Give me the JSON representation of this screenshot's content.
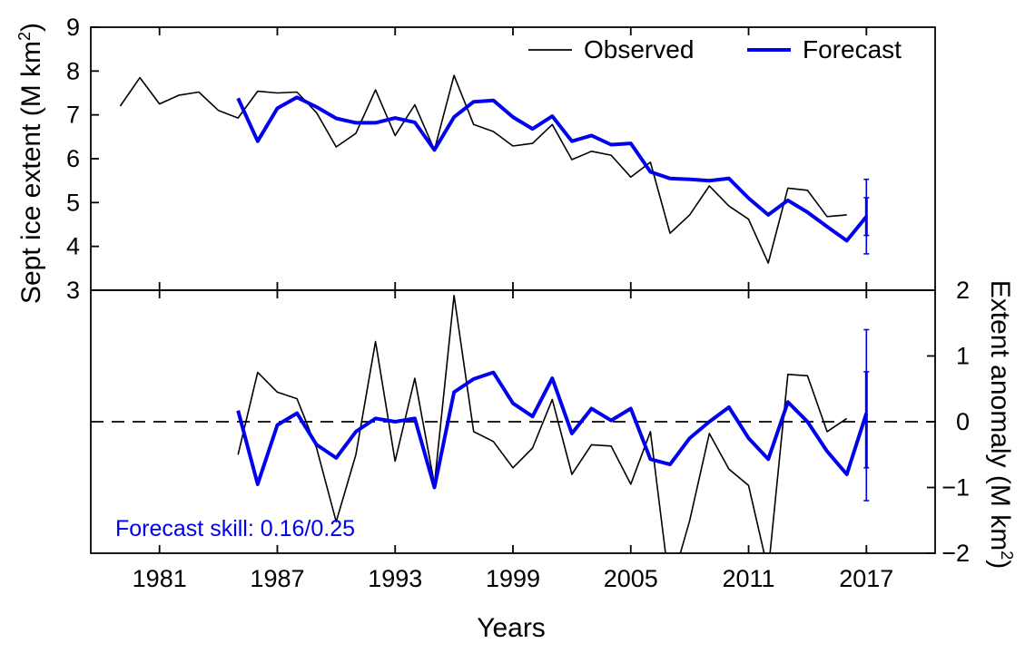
{
  "colors": {
    "observed": "#000000",
    "forecast": "#0000ee",
    "zero_line": "#000000"
  },
  "legend": {
    "observed_label": "Observed",
    "forecast_label": "Forecast",
    "position": "top-right"
  },
  "annotation": {
    "skill_text": "Forecast skill: 0.16/0.25"
  },
  "chart_data": [
    {
      "type": "line",
      "panel": "top",
      "ylabel": "Sept ice extent (M km²)",
      "ylabel_parts": {
        "main": "Sept ice extent (M km",
        "sup": "2",
        "end": ")"
      },
      "ylim": [
        3,
        9
      ],
      "yticks": [
        3,
        4,
        5,
        6,
        7,
        8,
        9
      ],
      "xlim": [
        1977.5,
        2020.5
      ],
      "grid": false,
      "series": [
        {
          "name": "Observed",
          "x": [
            1979,
            1980,
            1981,
            1982,
            1983,
            1984,
            1985,
            1986,
            1987,
            1988,
            1989,
            1990,
            1991,
            1992,
            1993,
            1994,
            1995,
            1996,
            1997,
            1998,
            1999,
            2000,
            2001,
            2002,
            2003,
            2004,
            2005,
            2006,
            2007,
            2008,
            2009,
            2010,
            2011,
            2012,
            2013,
            2014,
            2015,
            2016
          ],
          "values": [
            7.2,
            7.85,
            7.25,
            7.45,
            7.52,
            7.1,
            6.93,
            7.54,
            7.5,
            7.52,
            7.05,
            6.27,
            6.58,
            7.57,
            6.53,
            7.23,
            6.2,
            7.9,
            6.78,
            6.62,
            6.29,
            6.35,
            6.78,
            5.98,
            6.17,
            6.08,
            5.58,
            5.92,
            4.3,
            4.72,
            5.38,
            4.92,
            4.62,
            3.62,
            5.33,
            5.28,
            4.68,
            4.72
          ]
        },
        {
          "name": "Forecast",
          "x": [
            1985,
            1986,
            1987,
            1988,
            1989,
            1990,
            1991,
            1992,
            1993,
            1994,
            1995,
            1996,
            1997,
            1998,
            1999,
            2000,
            2001,
            2002,
            2003,
            2004,
            2005,
            2006,
            2007,
            2008,
            2009,
            2010,
            2011,
            2012,
            2013,
            2014,
            2015,
            2016,
            2017
          ],
          "values": [
            7.38,
            6.4,
            7.15,
            7.4,
            7.18,
            6.92,
            6.82,
            6.82,
            6.93,
            6.83,
            6.2,
            6.95,
            7.3,
            7.33,
            6.95,
            6.68,
            6.97,
            6.4,
            6.53,
            6.32,
            6.35,
            5.7,
            5.55,
            5.53,
            5.5,
            5.55,
            5.1,
            4.72,
            5.05,
            4.78,
            4.45,
            4.13,
            4.68
          ]
        }
      ],
      "errorbar": {
        "x": 2017,
        "center": 4.68,
        "inner": [
          4.25,
          5.11
        ],
        "outer": [
          3.83,
          5.53
        ]
      }
    },
    {
      "type": "line",
      "panel": "bottom",
      "xlabel": "Years",
      "ylabel": "Extent anomaly (M km²)",
      "ylabel_parts": {
        "main": "Extent anomaly (M km",
        "sup": "2",
        "end": ")"
      },
      "ylim": [
        -2,
        2
      ],
      "yticks": [
        -2,
        -1,
        0,
        1,
        2
      ],
      "ytick_labels": [
        "−2",
        "−1",
        "0",
        "1",
        "2"
      ],
      "xlim": [
        1977.5,
        2020.5
      ],
      "xticks": [
        1981,
        1987,
        1993,
        1999,
        2005,
        2011,
        2017
      ],
      "xtick_labels": [
        "1981",
        "1987",
        "1993",
        "1999",
        "2005",
        "2011",
        "2017"
      ],
      "zero_line": "dashed",
      "grid": false,
      "series": [
        {
          "name": "Observed",
          "x": [
            1985,
            1986,
            1987,
            1988,
            1989,
            1990,
            1991,
            1992,
            1993,
            1994,
            1995,
            1996,
            1997,
            1998,
            1999,
            2000,
            2001,
            2002,
            2003,
            2004,
            2005,
            2006,
            2007,
            2008,
            2009,
            2010,
            2011,
            2012,
            2013,
            2014,
            2015,
            2016
          ],
          "values": [
            -0.5,
            0.75,
            0.45,
            0.35,
            -0.4,
            -1.52,
            -0.5,
            1.22,
            -0.6,
            0.66,
            -0.95,
            1.92,
            -0.15,
            -0.3,
            -0.7,
            -0.4,
            0.34,
            -0.8,
            -0.35,
            -0.37,
            -0.95,
            -0.15,
            -2.55,
            -1.5,
            -0.18,
            -0.72,
            -0.97,
            -2.27,
            0.72,
            0.7,
            -0.15,
            0.05
          ]
        },
        {
          "name": "Forecast",
          "x": [
            1985,
            1986,
            1987,
            1988,
            1989,
            1990,
            1991,
            1992,
            1993,
            1994,
            1995,
            1996,
            1997,
            1998,
            1999,
            2000,
            2001,
            2002,
            2003,
            2004,
            2005,
            2006,
            2007,
            2008,
            2009,
            2010,
            2011,
            2012,
            2013,
            2014,
            2015,
            2016,
            2017
          ],
          "values": [
            0.17,
            -0.95,
            -0.05,
            0.13,
            -0.35,
            -0.55,
            -0.15,
            0.05,
            0.0,
            0.05,
            -1.0,
            0.45,
            0.65,
            0.75,
            0.28,
            0.08,
            0.66,
            -0.18,
            0.2,
            0.02,
            0.2,
            -0.57,
            -0.65,
            -0.25,
            0.0,
            0.22,
            -0.25,
            -0.57,
            0.3,
            0.0,
            -0.45,
            -0.8,
            0.13
          ]
        }
      ],
      "errorbar": {
        "x": 2017,
        "center": 0.13,
        "inner": [
          -0.7,
          0.76
        ],
        "outer": [
          -1.2,
          1.4
        ]
      }
    }
  ]
}
